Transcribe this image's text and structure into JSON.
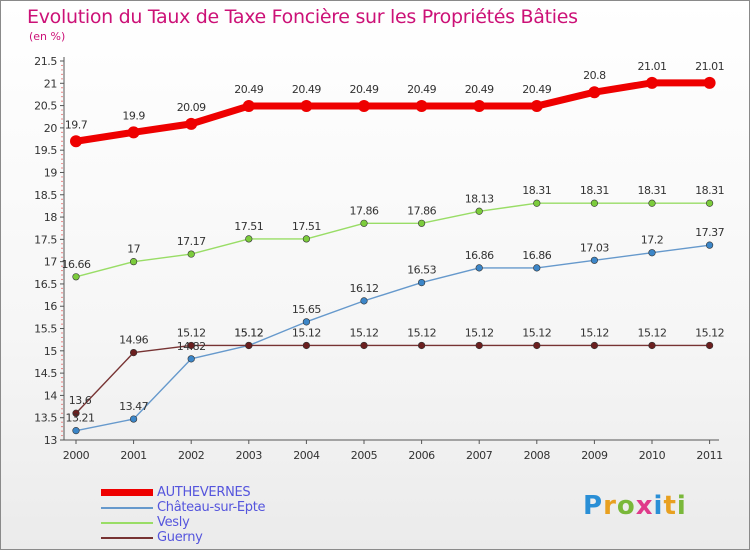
{
  "title": "Evolution du Taux de Taxe Foncière sur les Propriétés Bâties",
  "unit": "(en %)",
  "logo": {
    "text": "Proxiti",
    "letter_colors": [
      "#2a8fd6",
      "#e8a020",
      "#7ab83a",
      "#e03a8a",
      "#2a8fd6",
      "#e8a020",
      "#7ab83a"
    ]
  },
  "chart_data": {
    "type": "line",
    "title": "Evolution du Taux de Taxe Foncière sur les Propriétés Bâties",
    "ylabel": "(en %)",
    "xlabel": "",
    "x": [
      "2000",
      "2001",
      "2002",
      "2003",
      "2004",
      "2005",
      "2006",
      "2007",
      "2008",
      "2009",
      "2010",
      "2011"
    ],
    "ylim": [
      13,
      21.5
    ],
    "yticks": [
      "13",
      "13.5",
      "14",
      "14.5",
      "15",
      "15.5",
      "16",
      "16.5",
      "17",
      "17.5",
      "18",
      "18.5",
      "19",
      "19.5",
      "20",
      "20.5",
      "21",
      "21.5"
    ],
    "grid": false,
    "legend_position": "bottom-left",
    "series": [
      {
        "name": "AUTHEVERNES",
        "color": "#ee0000",
        "marker": "#ee0000",
        "width": 7,
        "values": [
          19.7,
          19.9,
          20.09,
          20.49,
          20.49,
          20.49,
          20.49,
          20.49,
          20.49,
          20.8,
          21.01,
          21.01
        ],
        "labels": [
          "19.7",
          "19.9",
          "20.09",
          "20.49",
          "20.49",
          "20.49",
          "20.49",
          "20.49",
          "20.49",
          "20.8",
          "21.01",
          "21.01"
        ]
      },
      {
        "name": "Château-sur-Epte",
        "color": "#6699cc",
        "marker": "#3c86c8",
        "width": 1.4,
        "values": [
          13.21,
          13.47,
          14.82,
          15.12,
          15.65,
          16.12,
          16.53,
          16.86,
          16.86,
          17.03,
          17.2,
          17.37
        ],
        "labels": [
          "13.21",
          "13.47",
          "14.82",
          "15.12",
          "15.65",
          "16.12",
          "16.53",
          "16.86",
          "16.86",
          "17.03",
          "17.2",
          "17.37"
        ]
      },
      {
        "name": "Vesly",
        "color": "#99dd66",
        "marker": "#7ccc3c",
        "width": 1.4,
        "values": [
          16.66,
          17,
          17.17,
          17.51,
          17.51,
          17.86,
          17.86,
          18.13,
          18.31,
          18.31,
          18.31,
          18.31
        ],
        "labels": [
          "16.66",
          "17",
          "17.17",
          "17.51",
          "17.51",
          "17.86",
          "17.86",
          "18.13",
          "18.31",
          "18.31",
          "18.31",
          "18.31"
        ]
      },
      {
        "name": "Guerny",
        "color": "#773333",
        "marker": "#6b1f1f",
        "width": 1.4,
        "values": [
          13.6,
          14.96,
          15.12,
          15.12,
          15.12,
          15.12,
          15.12,
          15.12,
          15.12,
          15.12,
          15.12,
          15.12
        ],
        "labels": [
          "13.6",
          "14.96",
          "15.12",
          "15.12",
          "15.12",
          "15.12",
          "15.12",
          "15.12",
          "15.12",
          "15.12",
          "15.12",
          "15.12"
        ]
      }
    ]
  }
}
